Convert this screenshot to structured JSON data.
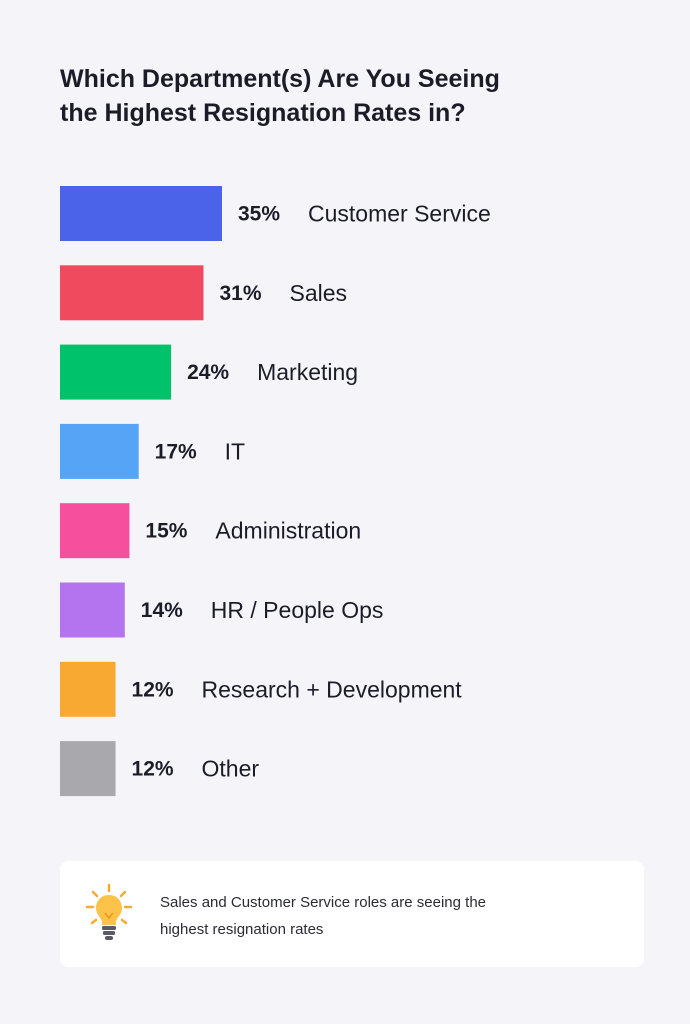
{
  "title": {
    "line1": "Which Department(s) Are You Seeing",
    "line2": "the Highest Resignation Rates in?"
  },
  "chart_data": {
    "type": "bar",
    "orientation": "horizontal",
    "title": "Which Department(s) Are You Seeing the Highest Resignation Rates in?",
    "categories": [
      "Customer Service",
      "Sales",
      "Marketing",
      "IT",
      "Administration",
      "HR / People Ops",
      "Research + Development",
      "Other"
    ],
    "values": [
      35,
      31,
      24,
      17,
      15,
      14,
      12,
      12
    ],
    "value_labels": [
      "35%",
      "31%",
      "24%",
      "17%",
      "15%",
      "14%",
      "12%",
      "12%"
    ],
    "colors": [
      "#4a63e8",
      "#f04a5e",
      "#00c26a",
      "#55a4f6",
      "#f54f9e",
      "#b474f0",
      "#f8a932",
      "#a9a9ad"
    ],
    "unit": "%",
    "grid": false,
    "legend": "none"
  },
  "callout": {
    "icon": "lightbulb-icon",
    "line1": "Sales and Customer Service roles are seeing the",
    "line2": "highest resignation rates"
  }
}
